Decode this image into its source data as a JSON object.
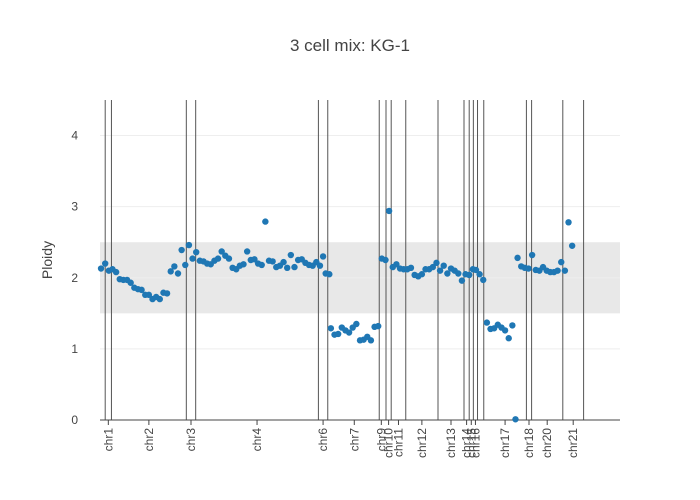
{
  "chart_data": {
    "type": "scatter",
    "title": "3 cell mix: KG-1",
    "xlabel": "",
    "ylabel": "Ploidy",
    "ylim": [
      0,
      4.5
    ],
    "yticks": [
      "0",
      "1",
      "2",
      "3",
      "4"
    ],
    "shaded_band": {
      "y0": 1.5,
      "y1": 2.5
    },
    "point_color": "#1f77b4",
    "band_color": "#e8e8e8",
    "xrange": [
      0,
      100
    ],
    "boundaries": [
      1.0,
      2.2,
      16.6,
      18.4,
      42.0,
      43.8,
      53.7,
      55.0,
      56.0,
      58.8,
      65.0,
      70.0,
      71.0,
      71.8,
      72.6,
      73.8,
      82.0,
      83.0,
      89.0,
      93.0
    ],
    "chromosomes": [
      {
        "label": "chr1",
        "x": 1.6
      },
      {
        "label": "chr2",
        "x": 9.4
      },
      {
        "label": "chr3",
        "x": 17.5
      },
      {
        "label": "chr4",
        "x": 30.2
      },
      {
        "label": "chr6",
        "x": 42.9
      },
      {
        "label": "chr7",
        "x": 48.9
      },
      {
        "label": "chr9",
        "x": 54.1
      },
      {
        "label": "chr10",
        "x": 55.5
      },
      {
        "label": "chr11",
        "x": 57.4
      },
      {
        "label": "chr12",
        "x": 61.9
      },
      {
        "label": "chr13",
        "x": 67.5
      },
      {
        "label": "chr14",
        "x": 70.5
      },
      {
        "label": "chr15",
        "x": 71.4
      },
      {
        "label": "chr16",
        "x": 72.2
      },
      {
        "label": "chr17",
        "x": 77.9
      },
      {
        "label": "chr18",
        "x": 82.5
      },
      {
        "label": "chr20",
        "x": 86.0
      },
      {
        "label": "chr21",
        "x": 91.0
      }
    ],
    "points": [
      [
        0.2,
        2.13
      ],
      [
        1.0,
        2.2
      ],
      [
        1.7,
        2.1
      ],
      [
        2.4,
        2.12
      ],
      [
        3.1,
        2.08
      ],
      [
        3.8,
        1.98
      ],
      [
        4.5,
        1.97
      ],
      [
        5.2,
        1.97
      ],
      [
        5.9,
        1.93
      ],
      [
        6.6,
        1.86
      ],
      [
        7.3,
        1.84
      ],
      [
        8.0,
        1.83
      ],
      [
        8.7,
        1.76
      ],
      [
        9.4,
        1.76
      ],
      [
        10.1,
        1.7
      ],
      [
        10.8,
        1.73
      ],
      [
        11.5,
        1.7
      ],
      [
        12.2,
        1.79
      ],
      [
        12.9,
        1.78
      ],
      [
        13.6,
        2.09
      ],
      [
        14.3,
        2.16
      ],
      [
        15.0,
        2.06
      ],
      [
        15.7,
        2.39
      ],
      [
        16.4,
        2.18
      ],
      [
        17.1,
        2.46
      ],
      [
        17.8,
        2.27
      ],
      [
        18.5,
        2.36
      ],
      [
        19.2,
        2.24
      ],
      [
        19.9,
        2.23
      ],
      [
        20.6,
        2.2
      ],
      [
        21.3,
        2.19
      ],
      [
        22.0,
        2.24
      ],
      [
        22.7,
        2.27
      ],
      [
        23.4,
        2.37
      ],
      [
        24.1,
        2.31
      ],
      [
        24.8,
        2.27
      ],
      [
        25.5,
        2.14
      ],
      [
        26.2,
        2.12
      ],
      [
        26.9,
        2.17
      ],
      [
        27.6,
        2.19
      ],
      [
        28.3,
        2.37
      ],
      [
        29.0,
        2.25
      ],
      [
        29.7,
        2.26
      ],
      [
        30.4,
        2.2
      ],
      [
        31.1,
        2.18
      ],
      [
        31.8,
        2.79
      ],
      [
        32.5,
        2.24
      ],
      [
        33.2,
        2.23
      ],
      [
        33.9,
        2.15
      ],
      [
        34.6,
        2.17
      ],
      [
        35.3,
        2.22
      ],
      [
        36.0,
        2.14
      ],
      [
        36.7,
        2.32
      ],
      [
        37.4,
        2.15
      ],
      [
        38.1,
        2.25
      ],
      [
        38.8,
        2.26
      ],
      [
        39.5,
        2.21
      ],
      [
        40.2,
        2.18
      ],
      [
        40.9,
        2.17
      ],
      [
        41.6,
        2.22
      ],
      [
        42.3,
        2.17
      ],
      [
        42.9,
        2.3
      ],
      [
        43.4,
        2.06
      ],
      [
        44.1,
        2.05
      ],
      [
        44.4,
        1.29
      ],
      [
        45.1,
        1.2
      ],
      [
        45.8,
        1.21
      ],
      [
        46.5,
        1.3
      ],
      [
        47.2,
        1.26
      ],
      [
        47.9,
        1.23
      ],
      [
        48.6,
        1.3
      ],
      [
        49.3,
        1.35
      ],
      [
        50.0,
        1.12
      ],
      [
        50.7,
        1.13
      ],
      [
        51.4,
        1.17
      ],
      [
        52.1,
        1.12
      ],
      [
        52.8,
        1.31
      ],
      [
        53.5,
        1.32
      ],
      [
        54.2,
        2.27
      ],
      [
        54.9,
        2.25
      ],
      [
        55.6,
        2.94
      ],
      [
        56.3,
        2.15
      ],
      [
        57.0,
        2.19
      ],
      [
        57.7,
        2.13
      ],
      [
        58.4,
        2.12
      ],
      [
        59.1,
        2.12
      ],
      [
        59.8,
        2.14
      ],
      [
        60.5,
        2.04
      ],
      [
        61.2,
        2.02
      ],
      [
        61.9,
        2.05
      ],
      [
        62.6,
        2.12
      ],
      [
        63.3,
        2.12
      ],
      [
        64.0,
        2.15
      ],
      [
        64.7,
        2.21
      ],
      [
        65.4,
        2.1
      ],
      [
        66.1,
        2.17
      ],
      [
        66.8,
        2.06
      ],
      [
        67.5,
        2.13
      ],
      [
        68.2,
        2.1
      ],
      [
        68.9,
        2.06
      ],
      [
        69.6,
        1.96
      ],
      [
        70.3,
        2.05
      ],
      [
        71.0,
        2.04
      ],
      [
        71.7,
        2.12
      ],
      [
        72.3,
        2.11
      ],
      [
        73.0,
        2.05
      ],
      [
        73.7,
        1.97
      ],
      [
        74.4,
        1.37
      ],
      [
        75.1,
        1.28
      ],
      [
        75.8,
        1.29
      ],
      [
        76.5,
        1.34
      ],
      [
        77.2,
        1.3
      ],
      [
        77.9,
        1.26
      ],
      [
        78.6,
        1.15
      ],
      [
        79.3,
        1.33
      ],
      [
        79.9,
        0.01
      ],
      [
        80.3,
        2.28
      ],
      [
        81.0,
        2.16
      ],
      [
        81.7,
        2.14
      ],
      [
        82.4,
        2.13
      ],
      [
        83.1,
        2.32
      ],
      [
        83.8,
        2.11
      ],
      [
        84.5,
        2.1
      ],
      [
        85.2,
        2.15
      ],
      [
        85.9,
        2.1
      ],
      [
        86.6,
        2.08
      ],
      [
        87.3,
        2.08
      ],
      [
        88.0,
        2.1
      ],
      [
        88.7,
        2.22
      ],
      [
        89.4,
        2.1
      ],
      [
        90.1,
        2.78
      ],
      [
        90.8,
        2.45
      ]
    ]
  }
}
